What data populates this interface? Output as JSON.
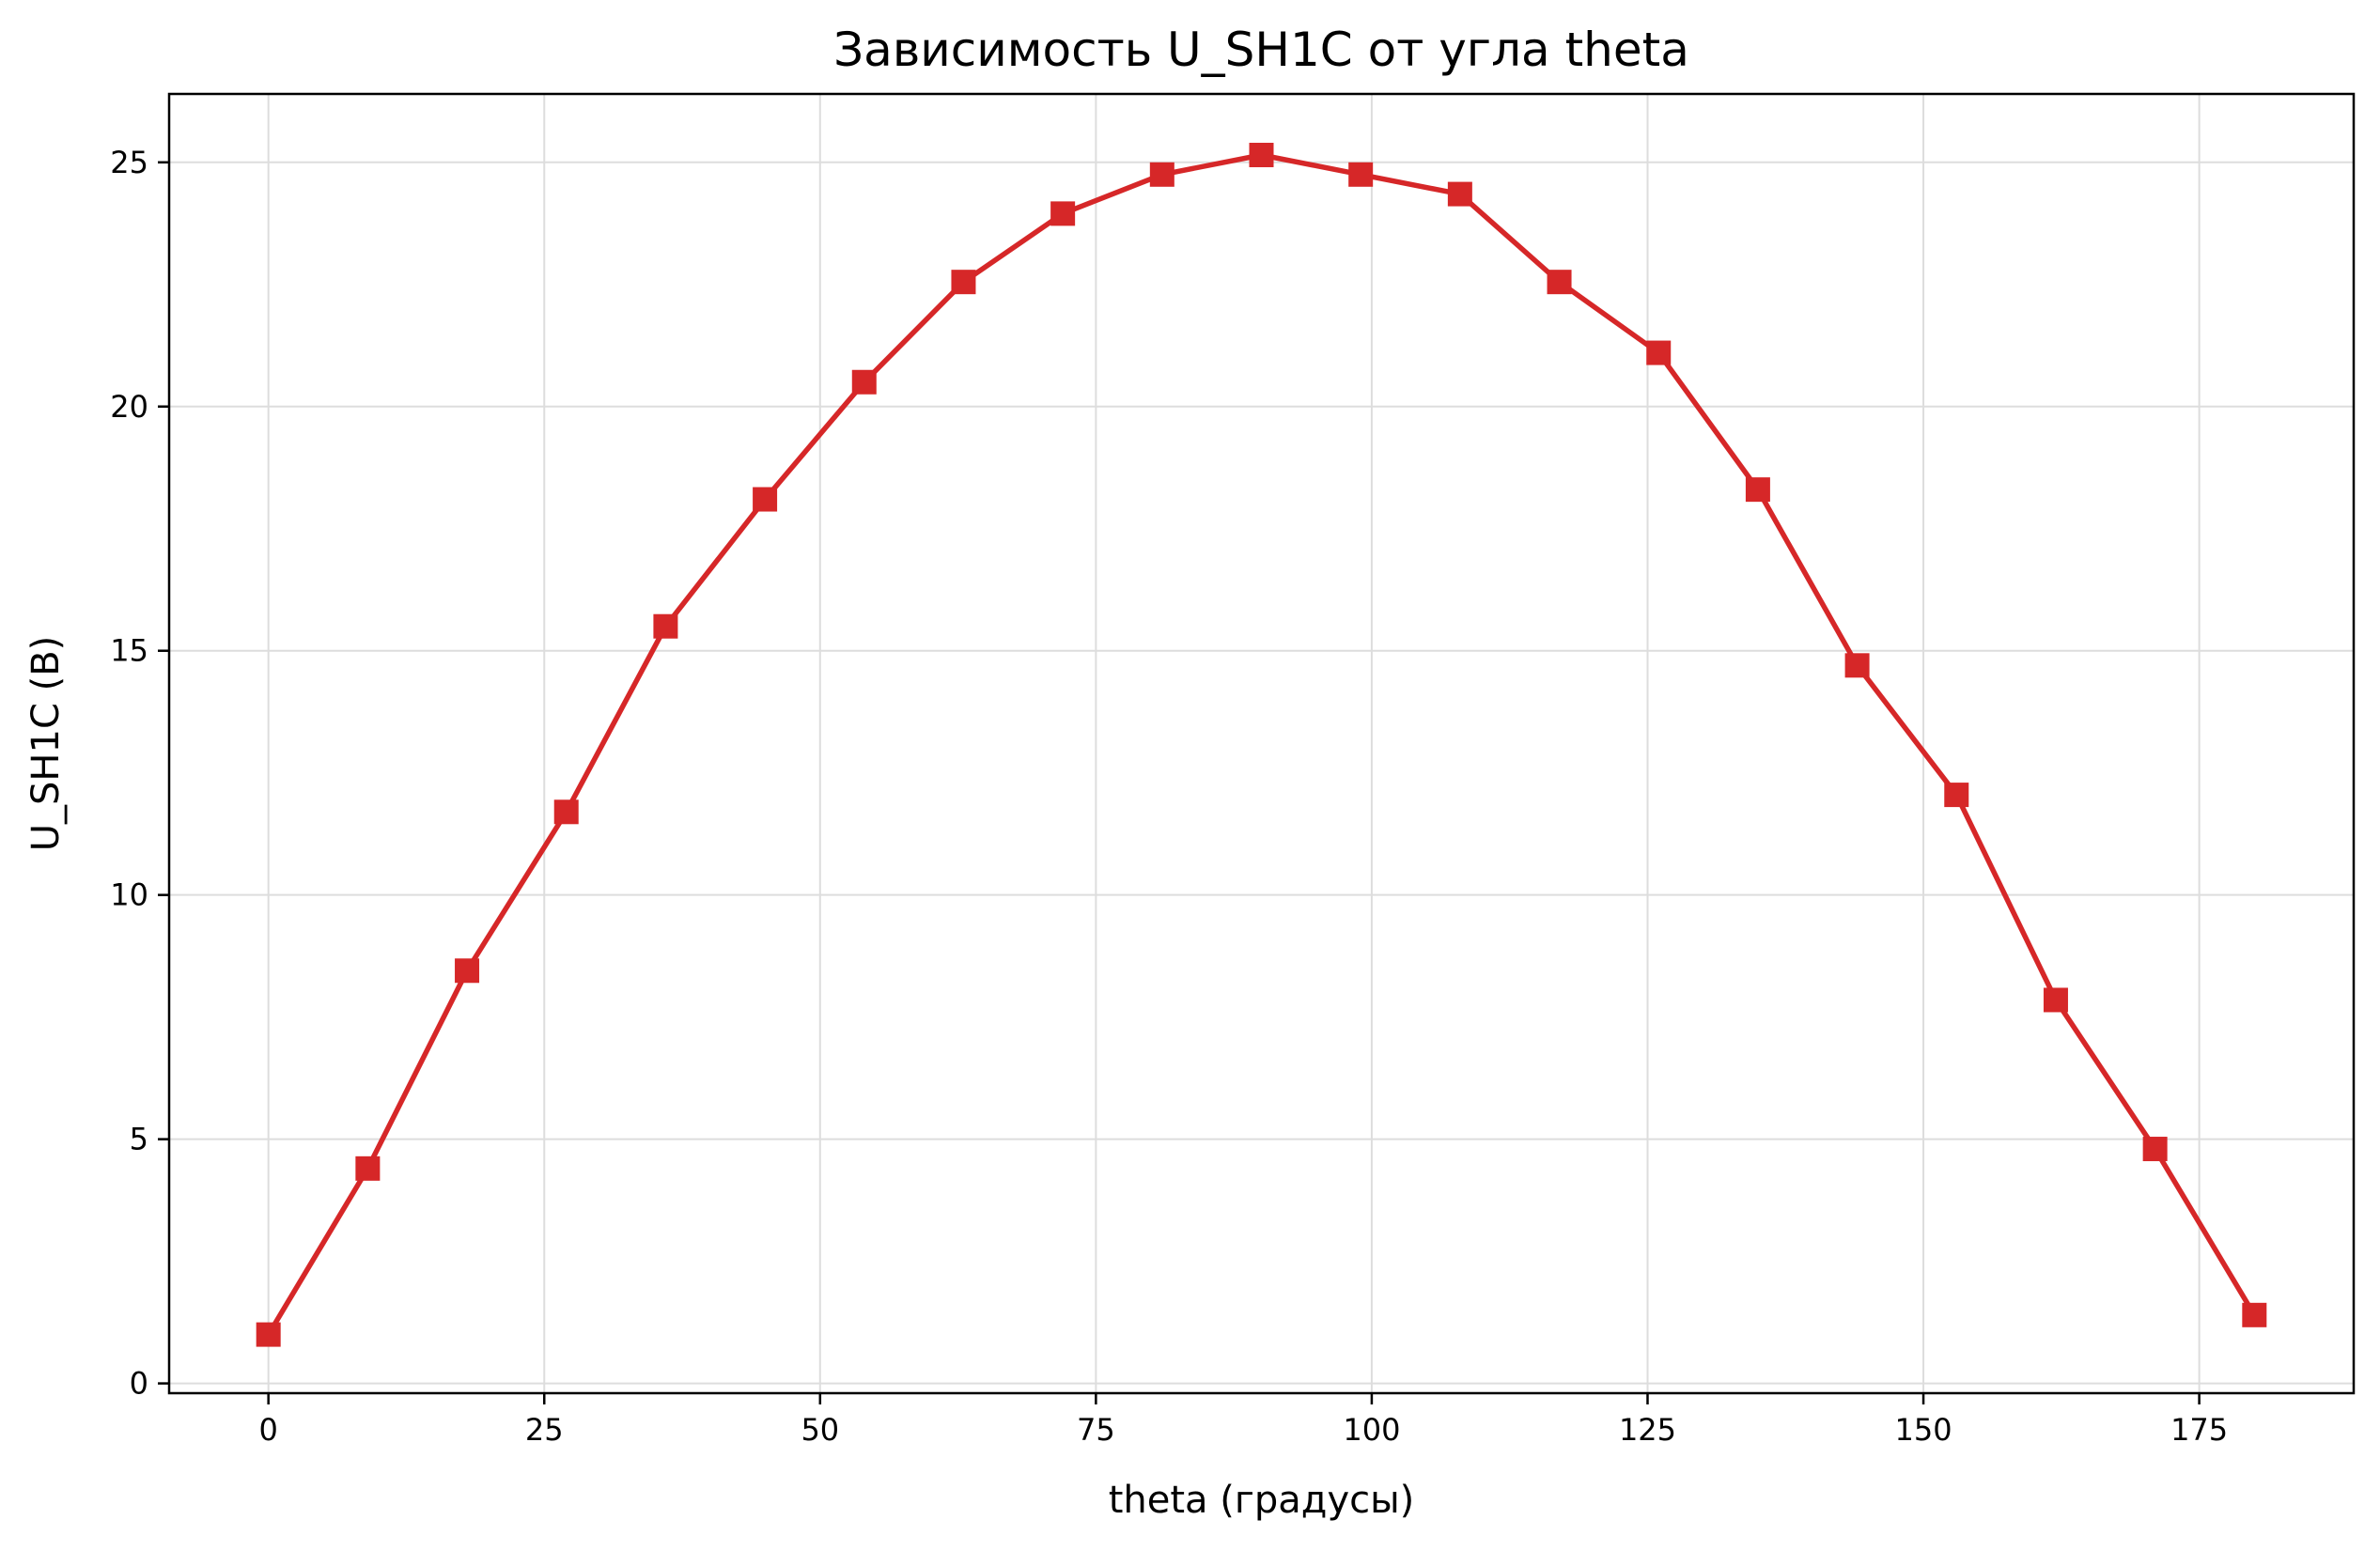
{
  "chart_data": {
    "type": "line",
    "title": "Зависимость U_SH1C от угла theta",
    "xlabel": "theta (градусы)",
    "ylabel": "U_SH1C (В)",
    "xlim": [
      -9,
      189
    ],
    "ylim": [
      -0.2,
      26.4
    ],
    "xticks": [
      0,
      25,
      50,
      75,
      100,
      125,
      150,
      175
    ],
    "yticks": [
      0,
      5,
      10,
      15,
      20,
      25
    ],
    "grid": true,
    "series": [
      {
        "color": "#d62728",
        "marker": "square",
        "x": [
          0,
          9,
          18,
          27,
          36,
          45,
          54,
          63,
          72,
          81,
          90,
          99,
          108,
          117,
          126,
          135,
          144,
          153,
          162,
          171,
          180
        ],
        "y": [
          1.0,
          4.4,
          8.45,
          11.7,
          15.5,
          18.1,
          20.5,
          22.55,
          23.95,
          24.75,
          25.15,
          24.75,
          24.35,
          22.55,
          21.1,
          18.3,
          14.7,
          12.05,
          7.85,
          4.8,
          1.4
        ]
      }
    ]
  }
}
